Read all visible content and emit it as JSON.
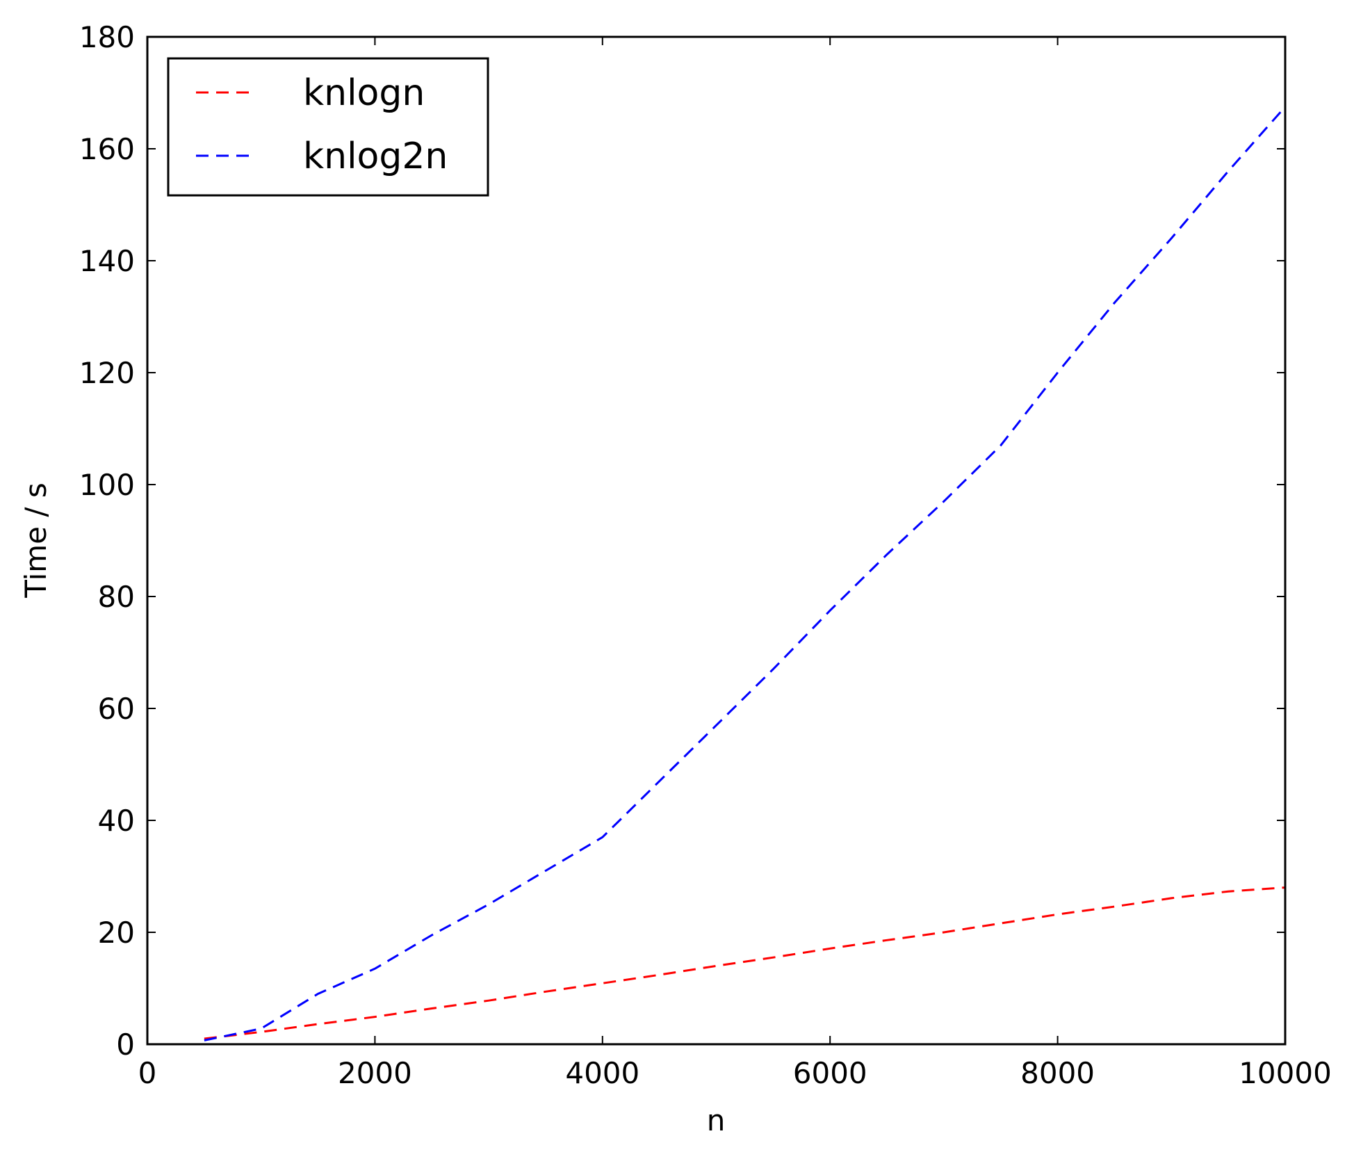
{
  "chart_data": {
    "type": "line",
    "title": "",
    "xlabel": "n",
    "ylabel": "Time / s",
    "xlim": [
      0,
      10000
    ],
    "ylim": [
      0,
      180
    ],
    "xticks": [
      0,
      2000,
      4000,
      6000,
      8000,
      10000
    ],
    "yticks": [
      0,
      20,
      40,
      60,
      80,
      100,
      120,
      140,
      160,
      180
    ],
    "xtick_labels": [
      "0",
      "2000",
      "4000",
      "6000",
      "8000",
      "10000"
    ],
    "ytick_labels": [
      "0",
      "20",
      "40",
      "60",
      "80",
      "100",
      "120",
      "140",
      "160",
      "180"
    ],
    "grid": false,
    "legend_position": "upper-left",
    "series": [
      {
        "name": "knlogn",
        "color": "#ff0000",
        "line_style": "dashed",
        "x": [
          500,
          1000,
          1500,
          2000,
          2500,
          3000,
          3500,
          4000,
          4500,
          5000,
          5500,
          6000,
          6500,
          7000,
          7500,
          8000,
          8500,
          9000,
          9500,
          10000
        ],
        "y": [
          1.0,
          2.2,
          3.6,
          4.9,
          6.4,
          7.8,
          9.4,
          10.9,
          12.4,
          14.0,
          15.5,
          17.1,
          18.6,
          20.0,
          21.6,
          23.2,
          24.6,
          26.1,
          27.3,
          28.0
        ]
      },
      {
        "name": "knlog2n",
        "color": "#0000ff",
        "line_style": "dashed",
        "x": [
          500,
          1000,
          1500,
          2000,
          2500,
          3000,
          3500,
          4000,
          4500,
          5000,
          5500,
          6000,
          6500,
          7000,
          7500,
          8000,
          8500,
          9000,
          9500,
          10000
        ],
        "y": [
          0.7,
          2.8,
          9.0,
          13.5,
          19.5,
          25.0,
          31.0,
          37.0,
          47.0,
          57.0,
          67.0,
          77.5,
          87.5,
          97.0,
          107.0,
          120.0,
          132.5,
          144.0,
          156.0,
          167.5
        ]
      }
    ]
  }
}
